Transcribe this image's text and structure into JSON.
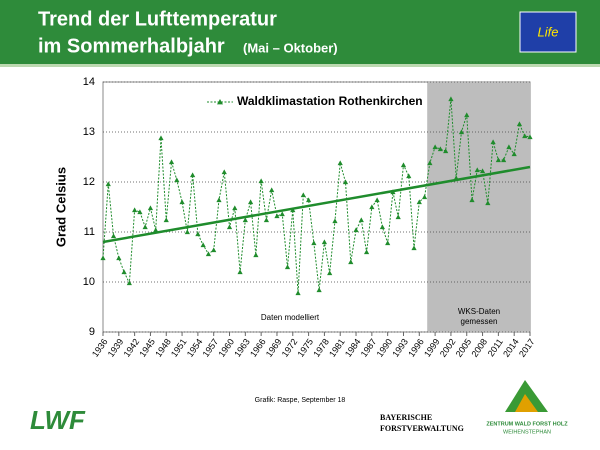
{
  "header": {
    "title_line1": "Trend der Lufttemperatur",
    "title_line2": "im Sommerhalbjahr",
    "title_note": "(Mai – Oktober)",
    "logo_text": "Life"
  },
  "footer": {
    "credit": "Grafik: Raspe, September 18",
    "logo_lwf": "LWF",
    "logo_bayern_1": "BAYERISCHE",
    "logo_bayern_2": "FORSTVERWALTUNG",
    "logo_zentrum_1": "ZENTRUM WALD FORST HOLZ",
    "logo_zentrum_2": "WEIHENSTEPHAN"
  },
  "chart_data": {
    "type": "line",
    "y_label": "Grad Celsius",
    "x": [
      1936,
      1937,
      1938,
      1939,
      1940,
      1941,
      1942,
      1943,
      1944,
      1945,
      1946,
      1947,
      1948,
      1949,
      1950,
      1951,
      1952,
      1953,
      1954,
      1955,
      1956,
      1957,
      1958,
      1959,
      1960,
      1961,
      1962,
      1963,
      1964,
      1965,
      1966,
      1967,
      1968,
      1969,
      1970,
      1971,
      1972,
      1973,
      1974,
      1975,
      1976,
      1977,
      1978,
      1979,
      1980,
      1981,
      1982,
      1983,
      1984,
      1985,
      1986,
      1987,
      1988,
      1989,
      1990,
      1991,
      1992,
      1993,
      1994,
      1995,
      1996,
      1997,
      1998,
      1999,
      2000,
      2001,
      2002,
      2003,
      2004,
      2005,
      2006,
      2007,
      2008,
      2009,
      2010,
      2011,
      2012,
      2013,
      2014,
      2015,
      2016,
      2017
    ],
    "series": [
      {
        "name": "Waldklimastation Rothenkirchen",
        "color": "#1f8c2c",
        "values": [
          10.48,
          11.96,
          10.92,
          10.48,
          10.2,
          9.98,
          11.44,
          11.4,
          11.1,
          11.48,
          11.04,
          12.88,
          11.24,
          12.4,
          12.04,
          11.6,
          11.0,
          12.14,
          10.96,
          10.74,
          10.56,
          10.64,
          11.64,
          12.2,
          11.1,
          11.48,
          10.2,
          11.24,
          11.6,
          10.54,
          12.02,
          11.24,
          11.84,
          11.32,
          11.36,
          10.3,
          11.44,
          9.78,
          11.74,
          11.64,
          10.78,
          9.84,
          10.8,
          10.18,
          11.22,
          12.38,
          12.0,
          10.4,
          11.04,
          11.24,
          10.6,
          11.5,
          11.64,
          11.1,
          10.78,
          11.8,
          11.3,
          12.34,
          12.12,
          10.68,
          11.6,
          11.7,
          12.38,
          12.7,
          12.66,
          12.62,
          13.66,
          12.08,
          13.0,
          13.34,
          11.64,
          12.24,
          12.22,
          11.58,
          12.8,
          12.44,
          12.44,
          12.7,
          12.56,
          13.16,
          12.92,
          12.9
        ]
      }
    ],
    "trend": {
      "color": "#1f8c2c",
      "values": [
        10.8,
        12.3
      ]
    },
    "shaded_region": {
      "from": 1997.5,
      "color": "#bdbdbd"
    },
    "annotations": [
      "Daten modelliert",
      "WKS-Daten",
      "gemessen"
    ],
    "xlim": [
      1936,
      2017
    ],
    "xticks": [
      1936,
      1939,
      1942,
      1945,
      1948,
      1951,
      1954,
      1957,
      1960,
      1963,
      1966,
      1969,
      1972,
      1975,
      1978,
      1981,
      1984,
      1987,
      1990,
      1993,
      1996,
      1999,
      2002,
      2005,
      2008,
      2011,
      2014,
      2017
    ],
    "ylim": [
      9,
      14
    ],
    "yticks": [
      9,
      10,
      11,
      12,
      13,
      14
    ],
    "grid": true
  }
}
